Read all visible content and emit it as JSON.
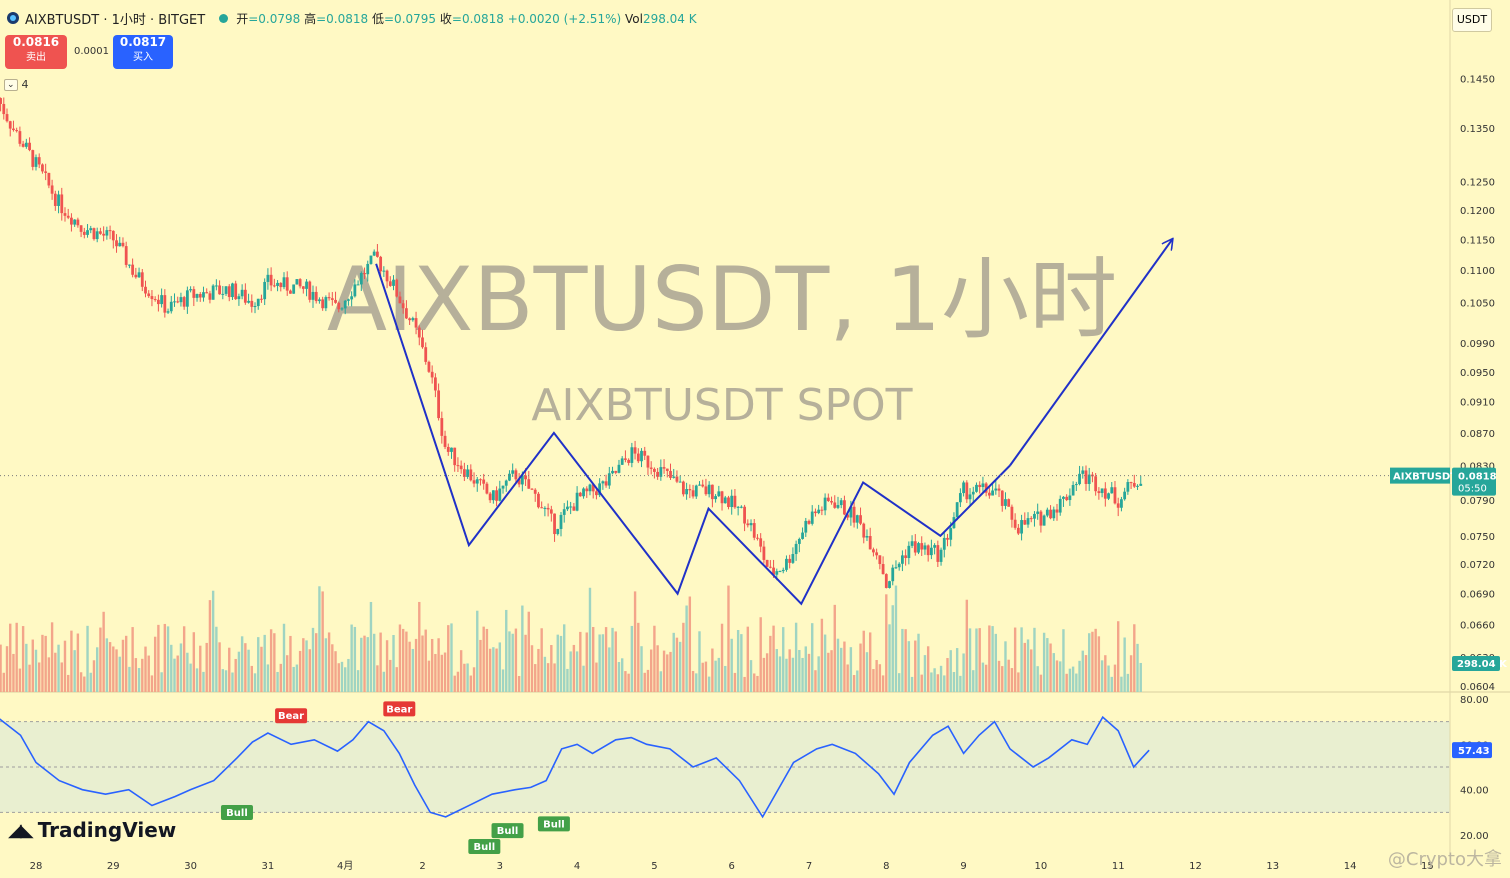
{
  "header": {
    "symbol": "AIXBTUSDT · 1小时 · BITGET",
    "open_label": "开",
    "open": "=0.0798",
    "high_label": "高",
    "high": "=0.0818",
    "low_label": "低",
    "low": "=0.0795",
    "close_label": "收",
    "close": "=0.0818",
    "change": "+0.0020 (+2.51%)",
    "vol_label": "Vol",
    "vol": "298.04 K"
  },
  "sell": {
    "price": "0.0816",
    "label": "卖出"
  },
  "spread": "0.0001",
  "buy": {
    "price": "0.0817",
    "label": "买入"
  },
  "indicator_count": "4",
  "unit": "USDT",
  "watermark": {
    "title": "AIXBTUSDT, 1小时",
    "subtitle": "AIXBTUSDT SPOT"
  },
  "brand": "TradingView",
  "credit": "@Crypto大拿",
  "colors": {
    "up": "#26a69a",
    "down": "#ef5350",
    "line": "#2031c8",
    "bg": "#fff9c4",
    "rsi": "#2962ff",
    "bull": "#43a047",
    "bear": "#e53935"
  },
  "chart_data": [
    {
      "type": "candlestick",
      "title": "AIXBTUSDT, 1小时",
      "subtitle": "AIXBTUSDT SPOT",
      "x_ticks": [
        "28",
        "29",
        "30",
        "31",
        "4月",
        "2",
        "3",
        "4",
        "5",
        "6",
        "7",
        "8",
        "9",
        "10",
        "11",
        "12",
        "13",
        "14",
        "15"
      ],
      "y_ticks": [
        "0.1450",
        "0.1350",
        "0.1250",
        "0.1200",
        "0.1150",
        "0.1100",
        "0.1050",
        "0.0990",
        "0.0950",
        "0.0910",
        "0.0870",
        "0.0830",
        "0.0790",
        "0.0750",
        "0.0720",
        "0.0690",
        "0.0660",
        "0.0630",
        "0.0604"
      ],
      "ylim": [
        0.0604,
        0.147
      ],
      "last_price": {
        "label": "AIXBTUSDT",
        "value": "0.0818",
        "countdown": "05:50"
      },
      "close_path": [
        [
          27.5,
          0.141
        ],
        [
          27.7,
          0.135
        ],
        [
          28.0,
          0.128
        ],
        [
          28.3,
          0.121
        ],
        [
          28.6,
          0.117
        ],
        [
          29.0,
          0.115
        ],
        [
          29.3,
          0.109
        ],
        [
          29.7,
          0.104
        ],
        [
          30.0,
          0.106
        ],
        [
          30.5,
          0.107
        ],
        [
          30.8,
          0.105
        ],
        [
          31.0,
          0.108
        ],
        [
          31.5,
          0.107
        ],
        [
          31.9,
          0.104
        ],
        [
          32.2,
          0.109
        ],
        [
          32.4,
          0.112
        ],
        [
          32.6,
          0.108
        ],
        [
          32.9,
          0.101
        ],
        [
          33.1,
          0.095
        ],
        [
          33.3,
          0.085
        ],
        [
          33.6,
          0.082
        ],
        [
          33.9,
          0.079
        ],
        [
          34.2,
          0.082
        ],
        [
          34.5,
          0.079
        ],
        [
          34.7,
          0.076
        ],
        [
          35.0,
          0.079
        ],
        [
          35.4,
          0.081
        ],
        [
          35.7,
          0.0845
        ],
        [
          36.0,
          0.083
        ],
        [
          36.4,
          0.08
        ],
        [
          36.8,
          0.08
        ],
        [
          37.2,
          0.077
        ],
        [
          37.5,
          0.071
        ],
        [
          37.7,
          0.072
        ],
        [
          38.0,
          0.077
        ],
        [
          38.3,
          0.079
        ],
        [
          38.6,
          0.077
        ],
        [
          38.9,
          0.073
        ],
        [
          39.0,
          0.07
        ],
        [
          39.3,
          0.074
        ],
        [
          39.7,
          0.073
        ],
        [
          40.0,
          0.08
        ],
        [
          40.4,
          0.08
        ],
        [
          40.7,
          0.076
        ],
        [
          41.0,
          0.077
        ],
        [
          41.3,
          0.079
        ],
        [
          41.5,
          0.082
        ],
        [
          41.7,
          0.081
        ],
        [
          42.0,
          0.079
        ],
        [
          42.1,
          0.08
        ],
        [
          42.3,
          0.0818
        ]
      ],
      "pattern_lines": [
        [
          [
            32.4,
            0.111
          ],
          [
            33.6,
            0.074
          ],
          [
            34.7,
            0.087
          ],
          [
            36.3,
            0.069
          ],
          [
            36.7,
            0.078
          ],
          [
            37.9,
            0.068
          ],
          [
            38.7,
            0.081
          ],
          [
            39.7,
            0.075
          ],
          [
            40.6,
            0.083
          ]
        ],
        [
          [
            40.6,
            0.083
          ],
          [
            42.7,
            0.115
          ]
        ]
      ],
      "volume": {
        "last": "298.04 K"
      }
    },
    {
      "type": "line",
      "name": "RSI",
      "y_ticks": [
        "80.00",
        "60.00",
        "40.00",
        "20.00"
      ],
      "ylim": [
        20,
        80
      ],
      "last": "57.43",
      "points": [
        [
          27.5,
          72
        ],
        [
          27.8,
          64
        ],
        [
          28.0,
          52
        ],
        [
          28.3,
          44
        ],
        [
          28.6,
          40
        ],
        [
          28.9,
          38
        ],
        [
          29.2,
          40
        ],
        [
          29.5,
          33
        ],
        [
          29.8,
          37
        ],
        [
          30.0,
          40
        ],
        [
          30.3,
          44
        ],
        [
          30.6,
          54
        ],
        [
          30.8,
          61
        ],
        [
          31.0,
          65
        ],
        [
          31.3,
          60
        ],
        [
          31.6,
          62
        ],
        [
          31.9,
          57
        ],
        [
          32.1,
          62
        ],
        [
          32.3,
          70
        ],
        [
          32.5,
          66
        ],
        [
          32.7,
          56
        ],
        [
          32.9,
          42
        ],
        [
          33.1,
          30
        ],
        [
          33.3,
          28
        ],
        [
          33.6,
          33
        ],
        [
          33.9,
          38
        ],
        [
          34.2,
          40
        ],
        [
          34.4,
          41
        ],
        [
          34.6,
          44
        ],
        [
          34.8,
          58
        ],
        [
          35.0,
          60
        ],
        [
          35.2,
          56
        ],
        [
          35.5,
          62
        ],
        [
          35.7,
          63
        ],
        [
          35.9,
          60
        ],
        [
          36.2,
          58
        ],
        [
          36.5,
          50
        ],
        [
          36.8,
          54
        ],
        [
          37.1,
          44
        ],
        [
          37.4,
          28
        ],
        [
          37.6,
          40
        ],
        [
          37.8,
          52
        ],
        [
          38.1,
          58
        ],
        [
          38.3,
          60
        ],
        [
          38.6,
          56
        ],
        [
          38.9,
          47
        ],
        [
          39.1,
          38
        ],
        [
          39.3,
          52
        ],
        [
          39.6,
          64
        ],
        [
          39.8,
          68
        ],
        [
          40.0,
          56
        ],
        [
          40.2,
          64
        ],
        [
          40.4,
          70
        ],
        [
          40.6,
          58
        ],
        [
          40.9,
          50
        ],
        [
          41.1,
          54
        ],
        [
          41.4,
          62
        ],
        [
          41.6,
          60
        ],
        [
          41.8,
          72
        ],
        [
          42.0,
          66
        ],
        [
          42.2,
          50
        ],
        [
          42.4,
          57.43
        ]
      ],
      "signals": [
        {
          "label": "Bull",
          "x": 30.6,
          "y": 35
        },
        {
          "label": "Bear",
          "x": 31.3,
          "y": 68
        },
        {
          "label": "Bear",
          "x": 32.7,
          "y": 71
        },
        {
          "label": "Bull",
          "x": 33.8,
          "y": 20
        },
        {
          "label": "Bull",
          "x": 34.1,
          "y": 27
        },
        {
          "label": "Bull",
          "x": 34.7,
          "y": 30
        }
      ]
    }
  ]
}
